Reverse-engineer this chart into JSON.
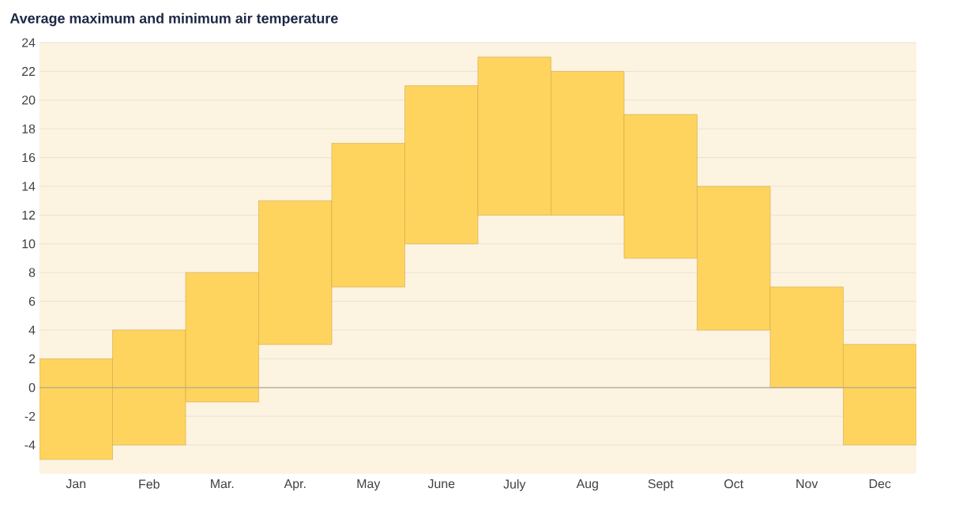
{
  "chart_data": {
    "type": "bar",
    "title": "Average maximum and minimum air temperature",
    "categories": [
      "Jan",
      "Feb",
      "Mar.",
      "Apr.",
      "May",
      "June",
      "July",
      "Aug",
      "Sept",
      "Oct",
      "Nov",
      "Dec"
    ],
    "base": [
      -5,
      -4,
      -1,
      3,
      7,
      10,
      12,
      12,
      9,
      4,
      0,
      -4
    ],
    "values": [
      7,
      8,
      9,
      10,
      10,
      11,
      11,
      10,
      10,
      10,
      7,
      7
    ],
    "color": "#ffd45e",
    "ylim": [
      -6,
      24
    ],
    "yticks": [
      -4,
      -2,
      0,
      2,
      4,
      6,
      8,
      10,
      12,
      14,
      16,
      18,
      20,
      22,
      24
    ],
    "grid": "y",
    "ref_lines": [
      {
        "axis": "y",
        "value": 0,
        "color": "#b0a890"
      }
    ]
  }
}
